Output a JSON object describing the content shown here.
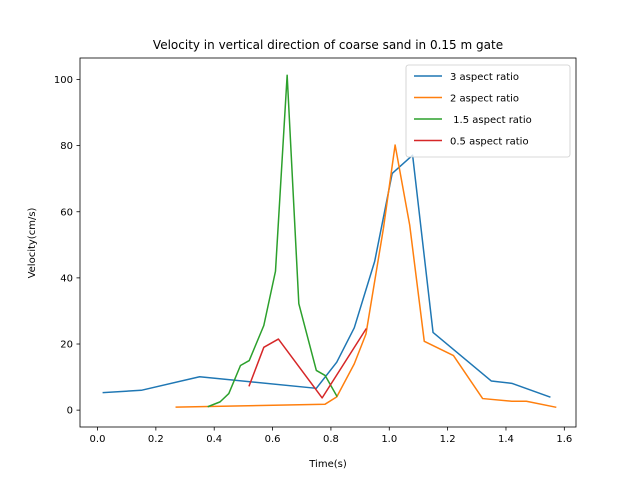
{
  "chart_data": {
    "type": "line",
    "title": "Velocity in vertical direction of coarse sand in 0.15 m gate",
    "xlabel": "Time(s)",
    "ylabel": "Velocity(cm/s)",
    "xlim": [
      -0.06,
      1.64
    ],
    "ylim": [
      -5.1,
      106.5
    ],
    "xticks": [
      0.0,
      0.2,
      0.4,
      0.6,
      0.8,
      1.0,
      1.2,
      1.4,
      1.6
    ],
    "xtick_labels": [
      "0.0",
      "0.2",
      "0.4",
      "0.6",
      "0.8",
      "1.0",
      "1.2",
      "1.4",
      "1.6"
    ],
    "yticks": [
      0,
      20,
      40,
      60,
      80,
      100
    ],
    "ytick_labels": [
      "0",
      "20",
      "40",
      "60",
      "80",
      "100"
    ],
    "grid": false,
    "legend_position": "top-right",
    "series": [
      {
        "name": "3 aspect ratio",
        "color": "#1f77b4",
        "x": [
          0.02,
          0.15,
          0.35,
          0.75,
          0.82,
          0.88,
          0.95,
          1.01,
          1.08,
          1.15,
          1.35,
          1.42,
          1.55
        ],
        "y": [
          5.3,
          6.0,
          10.1,
          6.6,
          14.5,
          24.9,
          45.0,
          71.6,
          77.1,
          23.5,
          8.8,
          8.1,
          4.0
        ]
      },
      {
        "name": "2 aspect ratio",
        "color": "#ff7f0e",
        "x": [
          0.27,
          0.38,
          0.78,
          0.82,
          0.88,
          0.92,
          0.98,
          1.02,
          1.07,
          1.12,
          1.22,
          1.32,
          1.42,
          1.47,
          1.57
        ],
        "y": [
          0.9,
          1.1,
          1.8,
          4.0,
          14.0,
          23.0,
          55.0,
          80.2,
          56.0,
          20.8,
          16.5,
          3.5,
          2.7,
          2.7,
          0.9
        ]
      },
      {
        "name": " 1.5 aspect ratio",
        "color": "#2ca02c",
        "x": [
          0.38,
          0.42,
          0.45,
          0.49,
          0.52,
          0.57,
          0.61,
          0.65,
          0.69,
          0.75,
          0.78,
          0.82
        ],
        "y": [
          1.1,
          2.5,
          5.0,
          13.5,
          15.0,
          25.6,
          42.0,
          101.3,
          32.2,
          12.0,
          10.5,
          4.3
        ]
      },
      {
        "name": "0.5 aspect ratio",
        "color": "#d62728",
        "x": [
          0.52,
          0.57,
          0.62,
          0.77,
          0.92
        ],
        "y": [
          7.4,
          19.0,
          21.5,
          3.7,
          24.5
        ]
      }
    ]
  }
}
